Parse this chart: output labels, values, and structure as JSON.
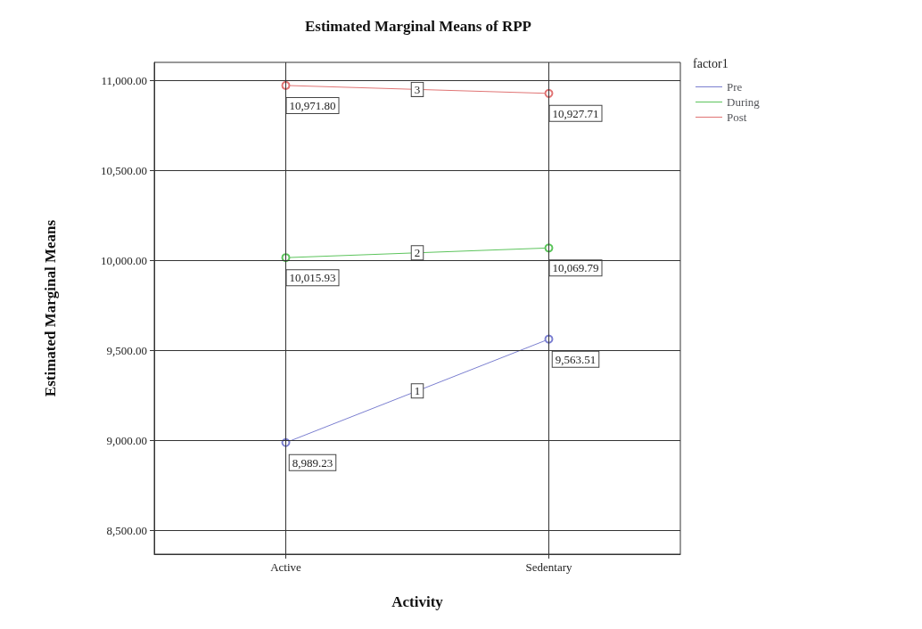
{
  "chart_data": {
    "type": "line",
    "title": "Estimated Marginal Means of RPP",
    "xlabel": "Activity",
    "ylabel": "Estimated Marginal Means",
    "legend_title": "factor1",
    "categories": [
      "Active",
      "Sedentary"
    ],
    "series": [
      {
        "name": "Pre",
        "color": "#7b7fd0",
        "values": [
          8989.23,
          9563.51
        ],
        "value_labels": [
          "8,989.23",
          "9,563.51"
        ]
      },
      {
        "name": "During",
        "color": "#5cc45c",
        "values": [
          10015.93,
          10069.79
        ],
        "value_labels": [
          "10,015.93",
          "10,069.79"
        ]
      },
      {
        "name": "Post",
        "color": "#e07474",
        "values": [
          10971.8,
          10927.71
        ],
        "value_labels": [
          "10,971.80",
          "10,927.71"
        ]
      }
    ],
    "annotations": [
      "1",
      "2",
      "3"
    ],
    "ylim": [
      8370,
      11100
    ],
    "yticks": [
      {
        "value": 8500,
        "label": "8,500.00"
      },
      {
        "value": 9000,
        "label": "9,000.00"
      },
      {
        "value": 9500,
        "label": "9,500.00"
      },
      {
        "value": 10000,
        "label": "10,000.00"
      },
      {
        "value": 10500,
        "label": "10,500.00"
      },
      {
        "value": 11000,
        "label": "11,000.00"
      }
    ],
    "grid": true,
    "legend": "top right",
    "marker": "circle",
    "line_style": "solid"
  }
}
